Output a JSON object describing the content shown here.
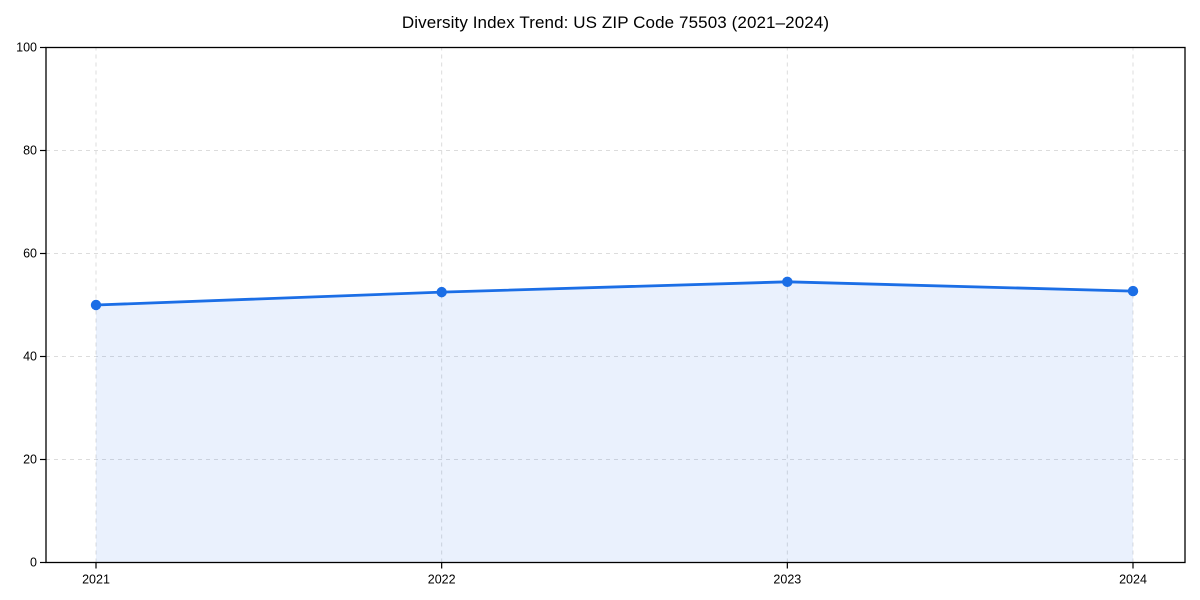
{
  "page": {
    "background_color": "#ffffff"
  },
  "chart_data": {
    "type": "line",
    "title": "Diversity Index Trend: US ZIP Code 75503 (2021–2024)",
    "categories": [
      "2021",
      "2022",
      "2023",
      "2024"
    ],
    "series": [
      {
        "name": "Diversity Index",
        "values": [
          50.0,
          52.5,
          54.5,
          52.7
        ]
      }
    ],
    "xlabel": "",
    "ylabel": "",
    "ylim": [
      0,
      100
    ],
    "yticks": [
      0,
      20,
      40,
      60,
      80,
      100
    ],
    "grid": true,
    "grid_style": "dashed",
    "legend": "none",
    "area_fill": true,
    "marker": "circle",
    "line_color": "#1b6ee6",
    "marker_color": "#1b6ee6",
    "fill_color": "rgba(30,110,230,0.095)",
    "grid_color": "#dcdcdc",
    "axis_color": "#000000",
    "text_color": "#000000"
  }
}
